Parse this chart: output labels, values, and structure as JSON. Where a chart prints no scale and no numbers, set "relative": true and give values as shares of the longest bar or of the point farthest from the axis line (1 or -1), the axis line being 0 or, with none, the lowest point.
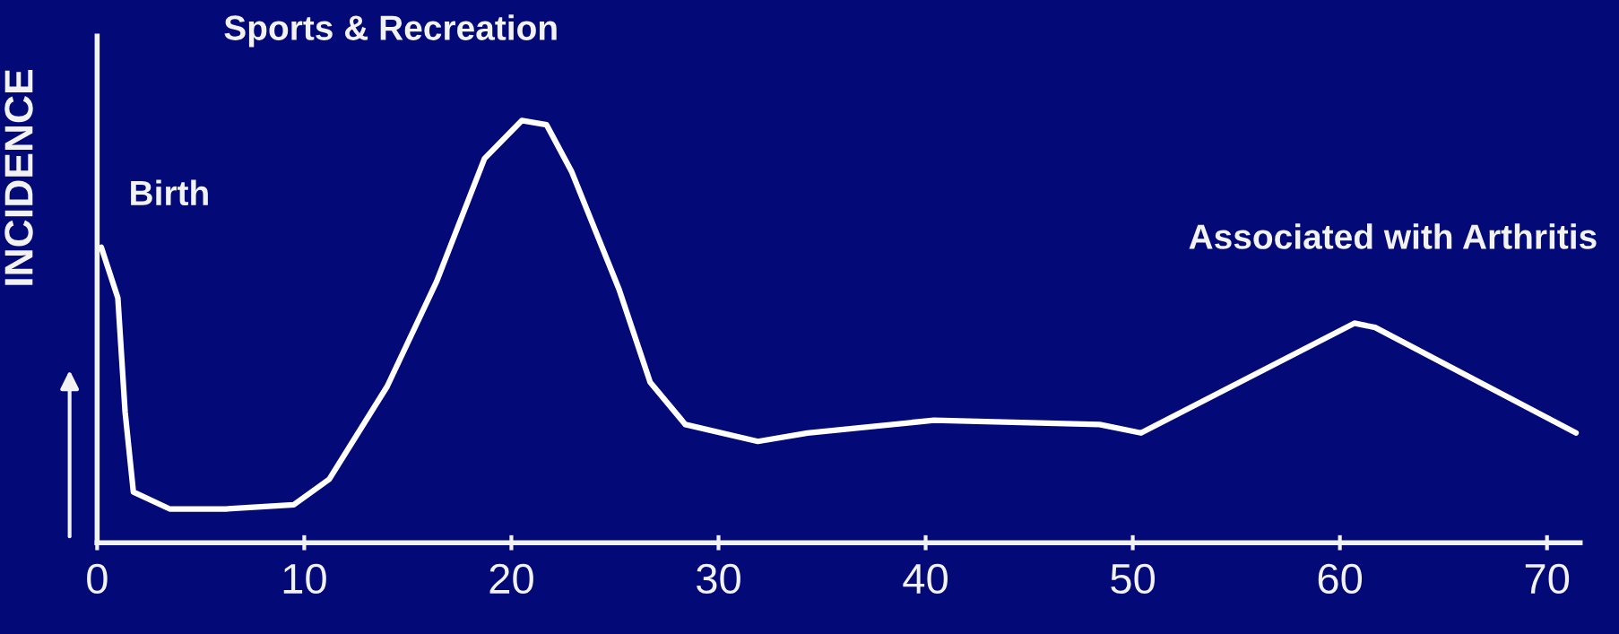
{
  "chart_data": {
    "type": "line",
    "relative": true,
    "ylabel": "INCIDENCE",
    "tick_labels": "x",
    "xlim": [
      0,
      71.6
    ],
    "xticks": [
      0,
      10,
      20,
      30,
      40,
      50,
      60,
      70
    ],
    "series": [
      {
        "color": "#ffffff",
        "x": [
          0.2,
          1.0,
          1.35,
          1.75,
          3.5,
          6.2,
          9.5,
          11.2,
          14.0,
          16.4,
          18.7,
          20.5,
          21.7,
          22.9,
          25.2,
          26.7,
          28.4,
          31.9,
          34.3,
          40.4,
          48.4,
          50.4,
          60.7,
          61.7,
          71.4
        ],
        "values": [
          0.7,
          0.58,
          0.31,
          0.12,
          0.08,
          0.08,
          0.09,
          0.15,
          0.37,
          0.62,
          0.91,
          1.0,
          0.99,
          0.88,
          0.6,
          0.38,
          0.28,
          0.24,
          0.26,
          0.29,
          0.28,
          0.26,
          0.52,
          0.51,
          0.26
        ]
      }
    ],
    "annotations": [
      {
        "text": "Birth",
        "x": 0.2,
        "y": 0.7
      },
      {
        "text": "Sports & Recreation",
        "x": 20.5,
        "y": 1.0
      },
      {
        "text": "Associated with Arthritis",
        "x": 60.7,
        "y": 0.52
      }
    ]
  }
}
